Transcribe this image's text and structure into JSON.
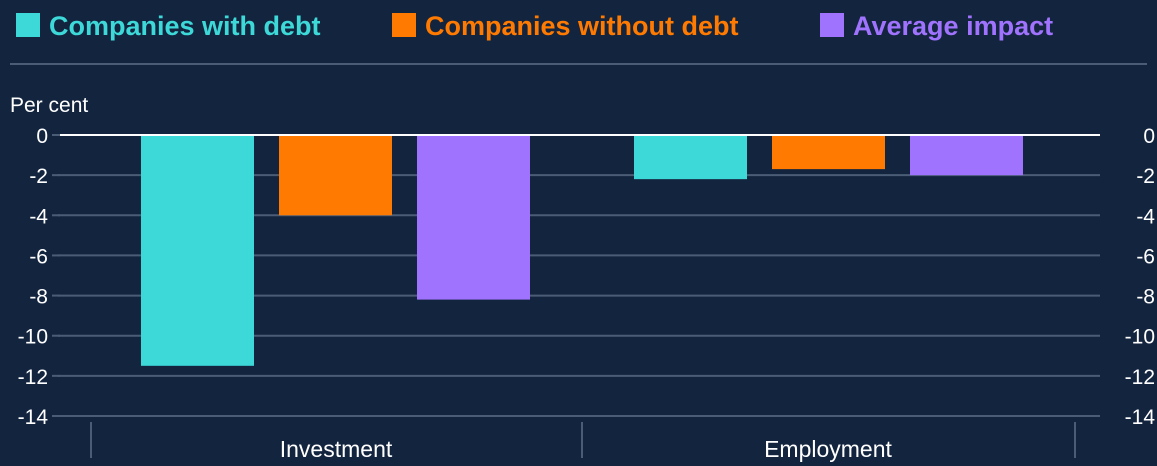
{
  "chart_data": {
    "type": "bar",
    "categories": [
      "Investment",
      "Employment"
    ],
    "series": [
      {
        "name": "Companies with debt",
        "color": "#3dd8d8",
        "values": [
          -11.5,
          -2.2
        ]
      },
      {
        "name": "Companies without debt",
        "color": "#ff7a00",
        "values": [
          -4.0,
          -1.7
        ]
      },
      {
        "name": "Average impact",
        "color": "#a073ff",
        "values": [
          -8.2,
          -2.0
        ]
      }
    ],
    "ylabel": "Per cent",
    "ylim": [
      -14,
      0
    ],
    "yticks": [
      0,
      -2,
      -4,
      -6,
      -8,
      -10,
      -12,
      -14
    ],
    "legend_position": "top",
    "grid": true,
    "dual_y_axis": true
  }
}
